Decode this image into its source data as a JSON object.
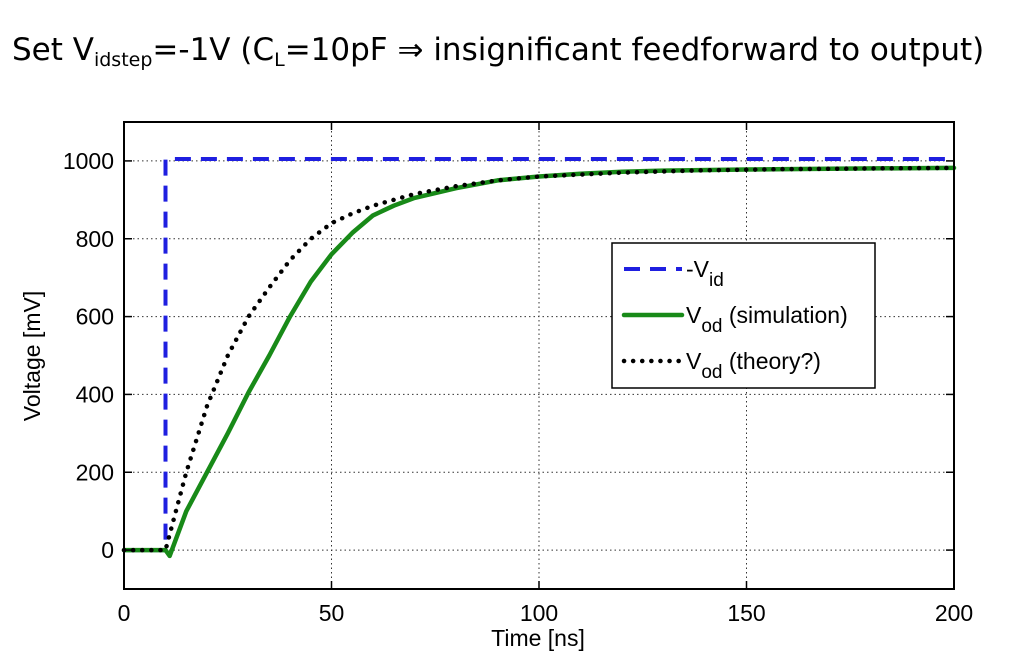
{
  "title": {
    "prefix": "Set V",
    "sub1": "idstep",
    "mid": "=-1V  (C",
    "sub2": "L",
    "arrow": "=10pF ⇒",
    "suffix": " insignificant feedforward to output)"
  },
  "chart_data": {
    "type": "line",
    "xlabel": "Time  [ns]",
    "ylabel": "Voltage [mV]",
    "xlim": [
      0,
      200
    ],
    "ylim": [
      -100,
      1100
    ],
    "xticks": [
      "0",
      "50",
      "100",
      "150",
      "200"
    ],
    "yticks": [
      "0",
      "200",
      "400",
      "600",
      "800",
      "1000"
    ],
    "grid": true,
    "legend_position": "right",
    "series": [
      {
        "name": "-V",
        "name_sub": "id",
        "style": "dashed",
        "color": "#1f1fe0",
        "x": [
          0,
          10,
          10,
          200
        ],
        "y": [
          0,
          0,
          1005,
          1005
        ]
      },
      {
        "name": "V",
        "name_sub": "od",
        "name_suffix": " (simulation)",
        "style": "solid",
        "color": "#188a18",
        "x": [
          0,
          10,
          11,
          15,
          20,
          25,
          30,
          35,
          40,
          45,
          50,
          55,
          60,
          65,
          70,
          80,
          90,
          100,
          110,
          120,
          130,
          150,
          170,
          200
        ],
        "y": [
          0,
          0,
          -15,
          100,
          200,
          300,
          405,
          500,
          600,
          690,
          760,
          815,
          860,
          885,
          905,
          930,
          950,
          960,
          967,
          972,
          975,
          978,
          980,
          982
        ]
      },
      {
        "name": "V",
        "name_sub": "od",
        "name_suffix": " (theory?)",
        "style": "dotted",
        "color": "#000000",
        "x": [
          0,
          10,
          12,
          15,
          20,
          25,
          30,
          35,
          40,
          45,
          50,
          55,
          60,
          70,
          80,
          90,
          100,
          120,
          140,
          160,
          200
        ],
        "y": [
          0,
          0,
          80,
          200,
          370,
          500,
          600,
          675,
          745,
          800,
          840,
          865,
          885,
          915,
          935,
          950,
          960,
          970,
          976,
          979,
          982
        ]
      }
    ]
  }
}
